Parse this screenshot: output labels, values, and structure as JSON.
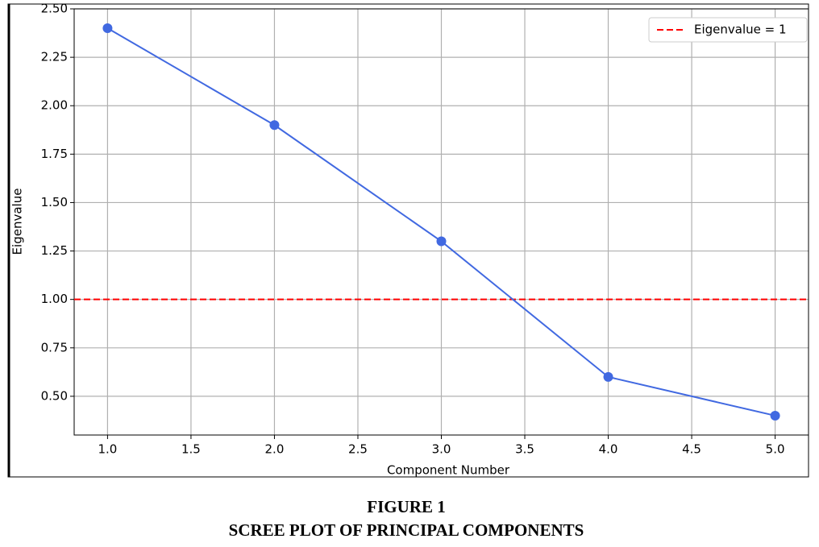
{
  "chart_data": {
    "type": "line",
    "x": [
      1,
      2,
      3,
      4,
      5
    ],
    "series": [
      {
        "color": "#4169e1",
        "values": [
          2.4,
          1.9,
          1.3,
          0.6,
          0.4
        ]
      }
    ],
    "reference_line": {
      "name": "Eigenvalue = 1",
      "value": 1,
      "color": "#ff0000",
      "style": "dashed"
    },
    "xlabel": "Component Number",
    "ylabel": "Eigenvalue",
    "xlim": [
      0.8,
      5.2
    ],
    "ylim": [
      0.3,
      2.5
    ],
    "xticks": [
      {
        "value": 1,
        "label": "1.0"
      },
      1.5,
      {
        "value": 2,
        "label": "2.0"
      },
      2.5,
      {
        "value": 3,
        "label": "3.0"
      },
      3.5,
      {
        "value": 4,
        "label": "4.0"
      },
      4.5,
      {
        "value": 5,
        "label": "5.0"
      }
    ],
    "yticks": [
      {
        "value": 0.5,
        "label": "0.50"
      },
      0.75,
      {
        "value": 1,
        "label": "1.00"
      },
      1.25,
      {
        "value": 1.5,
        "label": "1.50"
      },
      1.75,
      {
        "value": 2,
        "label": "2.00"
      },
      2.25,
      {
        "value": 2.5,
        "label": "2.50"
      }
    ],
    "grid": true,
    "legend": "upper right"
  },
  "caption": {
    "label": "FIGURE 1",
    "title": "SCREE PLOT OF PRINCIPAL COMPONENTS"
  }
}
